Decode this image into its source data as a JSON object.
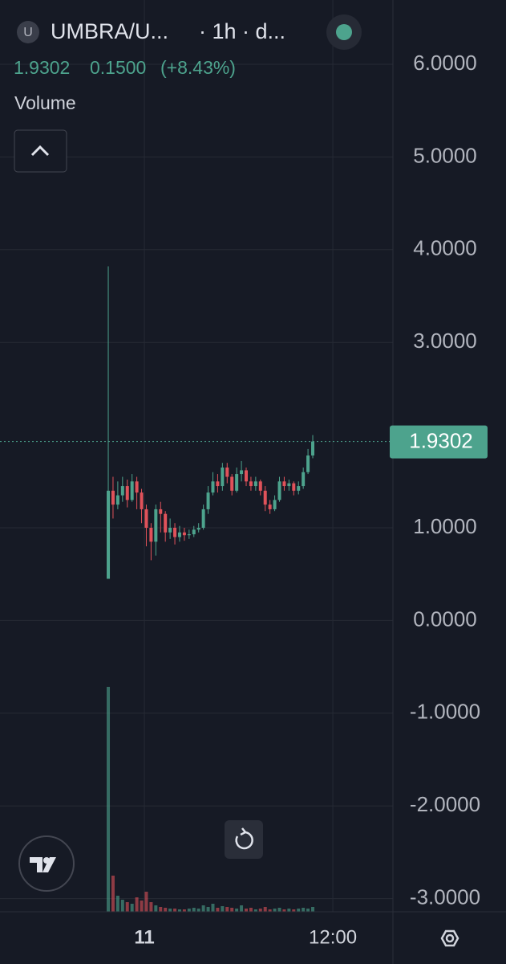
{
  "header": {
    "symbol_icon": "U",
    "symbol": "UMBRA/U...",
    "interval": "· 1h · d...",
    "price": "1.9302",
    "change": "0.1500",
    "change_pct": "(+8.43%)",
    "volume_label": "Volume"
  },
  "chart_data": {
    "type": "candlestick",
    "categories": [
      null,
      null,
      null,
      null,
      null,
      null,
      null,
      null,
      null,
      null,
      null,
      null,
      null,
      null,
      null,
      null,
      null,
      null,
      null,
      null,
      null,
      null,
      null,
      null,
      null,
      null,
      null,
      null,
      null,
      null,
      null,
      null,
      null,
      null,
      null,
      null,
      null,
      null,
      null,
      null,
      null,
      null,
      null,
      null
    ],
    "open": [
      0.45,
      1.4,
      1.25,
      1.35,
      1.45,
      1.3,
      1.5,
      1.38,
      1.2,
      1.0,
      0.85,
      1.2,
      1.15,
      0.95,
      1.0,
      0.9,
      0.95,
      0.92,
      0.93,
      0.98,
      1.0,
      1.2,
      1.38,
      1.5,
      1.45,
      1.65,
      1.55,
      1.4,
      1.58,
      1.62,
      1.5,
      1.45,
      1.5,
      1.4,
      1.25,
      1.2,
      1.3,
      1.5,
      1.45,
      1.48,
      1.4,
      1.45,
      1.6,
      1.78
    ],
    "high": [
      3.82,
      1.55,
      1.5,
      1.55,
      1.52,
      1.58,
      1.55,
      1.42,
      1.25,
      1.05,
      1.25,
      1.28,
      1.18,
      1.1,
      1.05,
      1.02,
      1.0,
      0.98,
      1.02,
      1.05,
      1.25,
      1.45,
      1.6,
      1.58,
      1.7,
      1.7,
      1.58,
      1.65,
      1.72,
      1.65,
      1.55,
      1.55,
      1.52,
      1.45,
      1.3,
      1.35,
      1.55,
      1.55,
      1.52,
      1.5,
      1.5,
      1.65,
      1.85,
      2.0
    ],
    "low": [
      0.45,
      1.1,
      1.2,
      1.28,
      1.22,
      1.28,
      1.2,
      1.05,
      0.8,
      0.65,
      0.7,
      0.95,
      0.85,
      0.88,
      0.82,
      0.85,
      0.86,
      0.88,
      0.9,
      0.95,
      0.98,
      1.15,
      1.35,
      1.38,
      1.4,
      1.48,
      1.35,
      1.38,
      1.5,
      1.45,
      1.4,
      1.4,
      1.35,
      1.18,
      1.15,
      1.18,
      1.28,
      1.4,
      1.4,
      1.35,
      1.36,
      1.42,
      1.58,
      1.75
    ],
    "close": [
      1.4,
      1.25,
      1.35,
      1.45,
      1.3,
      1.5,
      1.38,
      1.2,
      1.0,
      0.85,
      1.2,
      1.15,
      0.95,
      1.0,
      0.9,
      0.95,
      0.92,
      0.93,
      0.98,
      1.0,
      1.2,
      1.38,
      1.5,
      1.45,
      1.65,
      1.55,
      1.4,
      1.58,
      1.62,
      1.5,
      1.45,
      1.5,
      1.4,
      1.25,
      1.2,
      1.3,
      1.5,
      1.45,
      1.48,
      1.4,
      1.45,
      1.6,
      1.78,
      1.9302
    ],
    "volume": [
      280,
      45,
      20,
      15,
      12,
      10,
      18,
      14,
      25,
      12,
      8,
      6,
      5,
      4,
      4,
      3,
      3,
      4,
      5,
      4,
      8,
      6,
      10,
      5,
      7,
      6,
      5,
      4,
      8,
      4,
      5,
      3,
      4,
      6,
      3,
      4,
      5,
      3,
      4,
      3,
      4,
      5,
      4,
      6
    ],
    "up_color": "#4da38d",
    "down_color": "#e0525a",
    "ylim": [
      -3.142,
      6.693
    ],
    "yticks": [
      {
        "value": 6,
        "label": "6.0000"
      },
      {
        "value": 5,
        "label": "5.0000"
      },
      {
        "value": 4,
        "label": "4.0000"
      },
      {
        "value": 3,
        "label": "3.0000"
      },
      {
        "value": 1,
        "label": "1.0000"
      },
      {
        "value": 0,
        "label": "0.0000"
      },
      {
        "value": -1,
        "label": "-1.0000"
      },
      {
        "value": -2,
        "label": "-2.0000"
      },
      {
        "value": -3,
        "label": "-3.0000"
      }
    ],
    "xlim": [
      -22.77,
      59.86
    ],
    "xticks": [
      {
        "value": 7.59,
        "label": "11"
      },
      {
        "value": 47.22,
        "label": "12:00"
      }
    ],
    "grid": true
  }
}
